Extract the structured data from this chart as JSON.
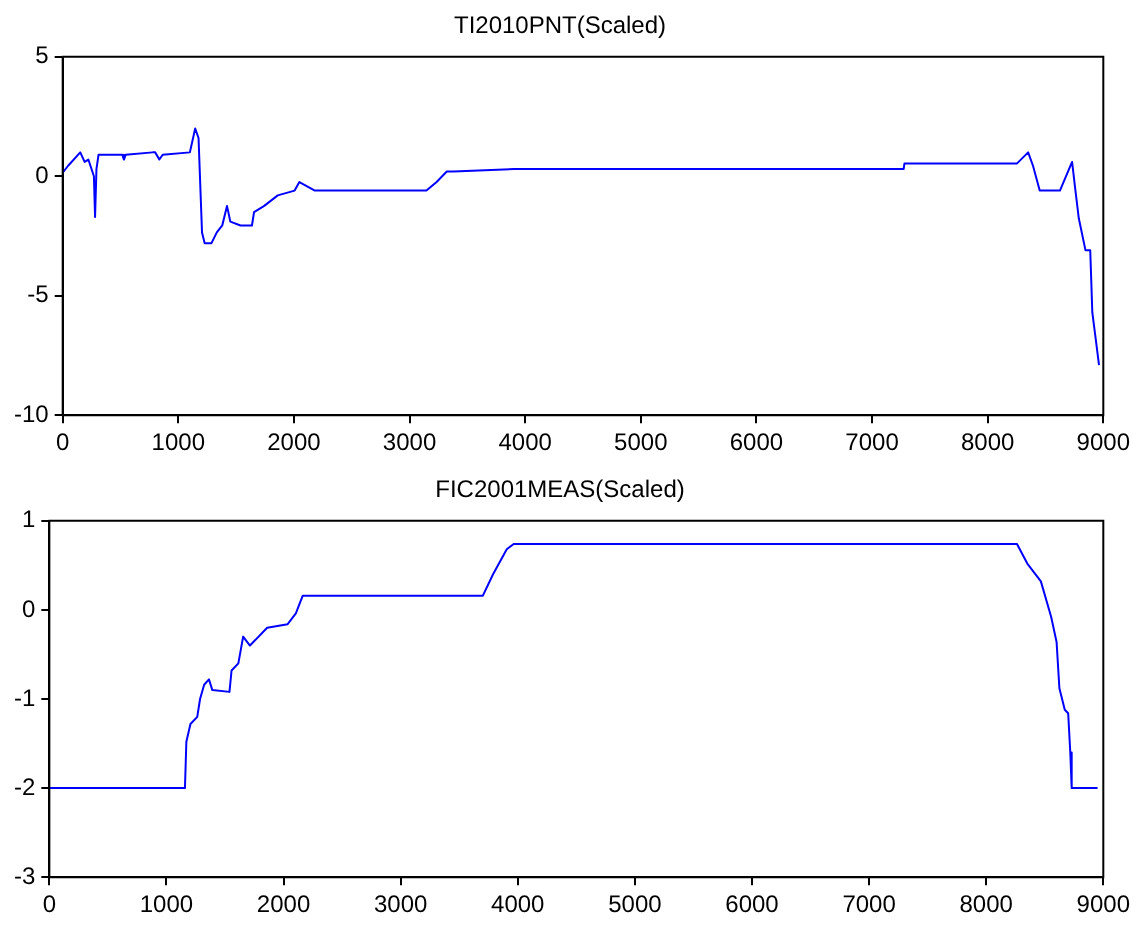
{
  "chart_data": [
    {
      "type": "line",
      "title": "TI2010PNT(Scaled)",
      "color": "#0000ff",
      "x": [
        0,
        47,
        152,
        190,
        222,
        270,
        280,
        292,
        310,
        515,
        530,
        545,
        778,
        800,
        836,
        865,
        1100,
        1146,
        1175,
        1205,
        1228,
        1287,
        1333,
        1380,
        1421,
        1450,
        1538,
        1637,
        1655,
        1743,
        1860,
        2006,
        2047,
        2181,
        3146,
        3234,
        3322,
        3380,
        3906,
        7273,
        7280,
        8252,
        8350,
        8392,
        8450,
        8625,
        8730,
        8759,
        8788,
        8846,
        8887,
        8905,
        8934,
        8963
      ],
      "values": [
        0.15,
        0.44,
        1.0,
        0.6,
        0.7,
        0,
        -1.7,
        0.3,
        0.9,
        0.9,
        0.7,
        0.9,
        1.0,
        1.0,
        0.7,
        0.9,
        1.0,
        2.0,
        1.6,
        -2.35,
        -2.8,
        -2.8,
        -2.35,
        -2.06,
        -1.24,
        -1.9,
        -2.06,
        -2.06,
        -1.5,
        -1.24,
        -0.8,
        -0.6,
        -0.24,
        -0.6,
        -0.6,
        -0.24,
        0.2,
        0.2,
        0.3,
        0.3,
        0.53,
        0.53,
        1.0,
        0.44,
        -0.6,
        -0.6,
        0.6,
        -0.6,
        -1.76,
        -3.1,
        -3.1,
        -5.7,
        -6.8,
        -7.9
      ],
      "xlim": [
        0,
        9000
      ],
      "xticks": [
        0,
        1000,
        2000,
        3000,
        4000,
        5000,
        6000,
        7000,
        8000,
        9000
      ],
      "ylim": [
        -10,
        5
      ],
      "yticks": [
        -10,
        -5,
        0,
        5
      ]
    },
    {
      "type": "line",
      "title": "FIC2001MEAS(Scaled)",
      "color": "#0000ff",
      "x": [
        0,
        1158,
        1170,
        1205,
        1263,
        1287,
        1322,
        1363,
        1392,
        1538,
        1556,
        1614,
        1655,
        1713,
        1860,
        2035,
        2105,
        2164,
        3702,
        3789,
        3906,
        3965,
        8263,
        8351,
        8467,
        8555,
        8601,
        8625,
        8671,
        8700,
        8718,
        8730,
        8951
      ],
      "values": [
        -2,
        -2,
        -1.48,
        -1.28,
        -1.2,
        -1.0,
        -0.84,
        -0.78,
        -0.9,
        -0.92,
        -0.68,
        -0.6,
        -0.3,
        -0.4,
        -0.2,
        -0.16,
        -0.04,
        0.16,
        0.16,
        0.4,
        0.68,
        0.74,
        0.74,
        0.52,
        0.32,
        -0.08,
        -0.36,
        -0.88,
        -1.12,
        -1.16,
        -1.6,
        -2.0,
        -2.0
      ],
      "xlim": [
        0,
        9000
      ],
      "xticks": [
        0,
        1000,
        2000,
        3000,
        4000,
        5000,
        6000,
        7000,
        8000,
        9000
      ],
      "ylim": [
        -3,
        1
      ],
      "yticks": [
        -3,
        -2,
        -1,
        0,
        1
      ]
    }
  ]
}
